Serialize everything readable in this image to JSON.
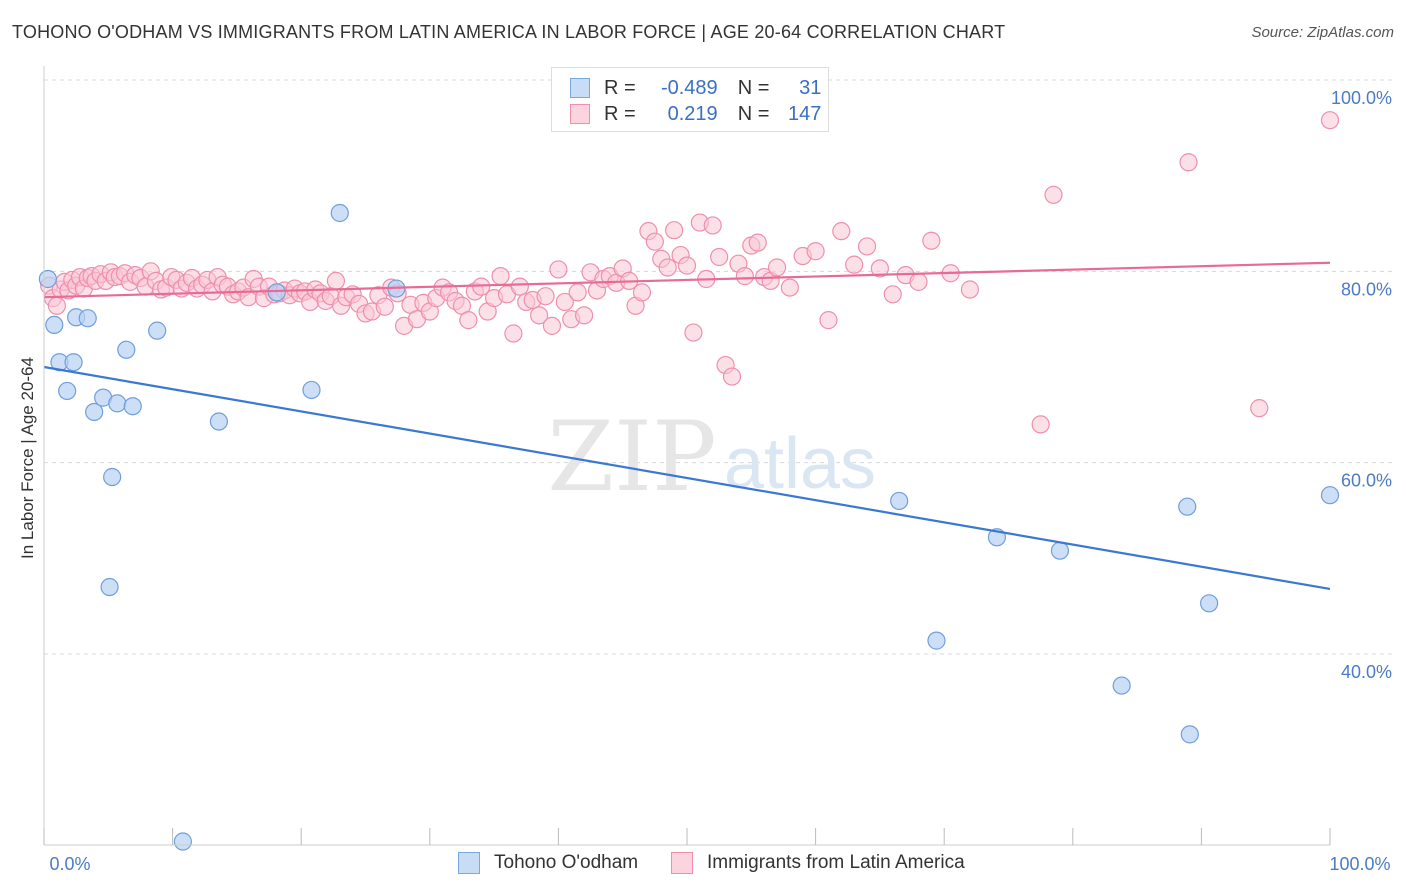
{
  "title": "TOHONO O'ODHAM VS IMMIGRANTS FROM LATIN AMERICA IN LABOR FORCE | AGE 20-64 CORRELATION CHART",
  "source": "Source: ZipAtlas.com",
  "watermark": {
    "zip": "ZIP",
    "atlas": "atlas"
  },
  "legend": {
    "rows": [
      {
        "r_label": "R =",
        "r_value": "-0.489",
        "n_label": "N =",
        "n_value": "31",
        "color": "#aac8f0",
        "border": "#7aa8e0"
      },
      {
        "r_label": "R =",
        "r_value": "0.219",
        "n_label": "N =",
        "n_value": "147",
        "color": "#f8c0d0",
        "border": "#ee90ac"
      }
    ]
  },
  "bottom_legend": [
    {
      "label": "Tohono O'odham",
      "color": "#c8dcf6",
      "border": "#7aa8e0"
    },
    {
      "label": "Immigrants from Latin America",
      "color": "#fbd4df",
      "border": "#ee90ac"
    }
  ],
  "chart_data": {
    "type": "scatter",
    "title": "TOHONO O'ODHAM VS IMMIGRANTS FROM LATIN AMERICA IN LABOR FORCE | AGE 20-64 CORRELATION CHART",
    "xlabel": "",
    "ylabel": "In Labor Force | Age 20-64",
    "xlim": [
      0,
      100
    ],
    "ylim": [
      20,
      102
    ],
    "x_tick_labels": [
      {
        "value": 0,
        "label": "0.0%"
      },
      {
        "value": 100,
        "label": "100.0%"
      }
    ],
    "y_tick_labels": [
      {
        "value": 100,
        "label": "100.0%"
      },
      {
        "value": 80,
        "label": "80.0%"
      },
      {
        "value": 60,
        "label": "60.0%"
      },
      {
        "value": 40,
        "label": "40.0%"
      }
    ],
    "grid": true,
    "colors": {
      "blue": "#3a78d4",
      "pink": "#e86a96",
      "blue_fill": "#b8d2f2",
      "pink_fill": "#f9c6d5"
    },
    "series": [
      {
        "name": "Tohono O'odham",
        "trend": {
          "x": [
            0,
            100
          ],
          "y": [
            70.0,
            46.8
          ]
        },
        "points": [
          [
            0.3,
            79.2
          ],
          [
            0.8,
            74.4
          ],
          [
            1.2,
            70.5
          ],
          [
            1.8,
            67.5
          ],
          [
            2.3,
            70.5
          ],
          [
            2.5,
            75.2
          ],
          [
            3.4,
            75.1
          ],
          [
            3.9,
            65.3
          ],
          [
            4.6,
            66.8
          ],
          [
            5.3,
            58.5
          ],
          [
            5.7,
            66.2
          ],
          [
            6.4,
            71.8
          ],
          [
            6.9,
            65.9
          ],
          [
            5.1,
            47.0
          ],
          [
            8.8,
            73.8
          ],
          [
            10.8,
            20.4
          ],
          [
            13.6,
            64.3
          ],
          [
            18.1,
            77.8
          ],
          [
            20.8,
            67.6
          ],
          [
            23.0,
            86.1
          ],
          [
            27.4,
            78.2
          ],
          [
            44.0,
            100.2
          ],
          [
            66.5,
            56.0
          ],
          [
            69.4,
            41.4
          ],
          [
            74.1,
            52.2
          ],
          [
            79.0,
            50.8
          ],
          [
            83.8,
            36.7
          ],
          [
            88.9,
            55.4
          ],
          [
            89.1,
            31.6
          ],
          [
            90.6,
            45.3
          ],
          [
            100,
            56.6
          ]
        ]
      },
      {
        "name": "Immigrants from Latin America",
        "trend": {
          "x": [
            0,
            100
          ],
          "y": [
            77.3,
            80.9
          ]
        },
        "points": [
          [
            0.4,
            78.5
          ],
          [
            0.7,
            77.2
          ],
          [
            1.0,
            76.4
          ],
          [
            1.3,
            78.1
          ],
          [
            1.6,
            78.9
          ],
          [
            1.9,
            78.0
          ],
          [
            2.2,
            79.1
          ],
          [
            2.5,
            78.5
          ],
          [
            2.8,
            79.4
          ],
          [
            3.1,
            78.2
          ],
          [
            3.4,
            79.3
          ],
          [
            3.7,
            79.5
          ],
          [
            4.0,
            79.0
          ],
          [
            4.4,
            79.7
          ],
          [
            4.8,
            79.0
          ],
          [
            5.2,
            79.9
          ],
          [
            5.5,
            79.4
          ],
          [
            5.9,
            79.5
          ],
          [
            6.3,
            79.8
          ],
          [
            6.7,
            78.9
          ],
          [
            7.1,
            79.6
          ],
          [
            7.5,
            79.3
          ],
          [
            7.9,
            78.4
          ],
          [
            8.3,
            80.0
          ],
          [
            8.7,
            79.0
          ],
          [
            9.1,
            78.1
          ],
          [
            9.5,
            78.3
          ],
          [
            9.9,
            79.4
          ],
          [
            10.3,
            79.1
          ],
          [
            10.7,
            78.2
          ],
          [
            11.1,
            78.8
          ],
          [
            11.5,
            79.3
          ],
          [
            11.9,
            78.2
          ],
          [
            12.3,
            78.6
          ],
          [
            12.7,
            79.1
          ],
          [
            13.1,
            77.9
          ],
          [
            13.5,
            79.4
          ],
          [
            13.9,
            78.6
          ],
          [
            14.3,
            78.4
          ],
          [
            14.7,
            77.6
          ],
          [
            15.1,
            77.9
          ],
          [
            15.5,
            78.3
          ],
          [
            15.9,
            77.3
          ],
          [
            16.3,
            79.2
          ],
          [
            16.7,
            78.4
          ],
          [
            17.1,
            77.2
          ],
          [
            17.5,
            78.4
          ],
          [
            17.9,
            77.6
          ],
          [
            18.3,
            77.7
          ],
          [
            18.7,
            78.0
          ],
          [
            19.1,
            77.5
          ],
          [
            19.5,
            78.2
          ],
          [
            19.9,
            77.7
          ],
          [
            20.3,
            77.9
          ],
          [
            20.7,
            76.8
          ],
          [
            21.1,
            78.1
          ],
          [
            21.5,
            77.7
          ],
          [
            21.9,
            76.9
          ],
          [
            22.3,
            77.4
          ],
          [
            22.7,
            79.0
          ],
          [
            23.1,
            76.4
          ],
          [
            23.5,
            77.3
          ],
          [
            24.0,
            77.6
          ],
          [
            24.5,
            76.6
          ],
          [
            25.0,
            75.6
          ],
          [
            25.5,
            75.8
          ],
          [
            26.0,
            77.5
          ],
          [
            26.5,
            76.3
          ],
          [
            27.0,
            78.3
          ],
          [
            27.5,
            77.7
          ],
          [
            28.0,
            74.3
          ],
          [
            28.5,
            76.5
          ],
          [
            29.0,
            75.0
          ],
          [
            29.5,
            76.7
          ],
          [
            30.0,
            75.8
          ],
          [
            30.5,
            77.2
          ],
          [
            31.0,
            78.3
          ],
          [
            31.5,
            77.8
          ],
          [
            32.0,
            76.9
          ],
          [
            32.5,
            76.4
          ],
          [
            33.0,
            74.9
          ],
          [
            33.5,
            77.9
          ],
          [
            34.0,
            78.4
          ],
          [
            34.5,
            75.8
          ],
          [
            35.0,
            77.2
          ],
          [
            35.5,
            79.5
          ],
          [
            36.0,
            77.6
          ],
          [
            36.5,
            73.5
          ],
          [
            37.0,
            78.4
          ],
          [
            37.5,
            76.8
          ],
          [
            38.0,
            77.0
          ],
          [
            38.5,
            75.4
          ],
          [
            39.0,
            77.4
          ],
          [
            39.5,
            74.3
          ],
          [
            40.0,
            80.2
          ],
          [
            40.5,
            76.8
          ],
          [
            41.0,
            75.0
          ],
          [
            41.5,
            77.8
          ],
          [
            42.0,
            75.4
          ],
          [
            42.5,
            79.9
          ],
          [
            43.0,
            78.0
          ],
          [
            43.5,
            79.2
          ],
          [
            44.0,
            79.5
          ],
          [
            44.5,
            78.8
          ],
          [
            45.0,
            80.3
          ],
          [
            45.5,
            79.0
          ],
          [
            46.0,
            76.4
          ],
          [
            46.5,
            77.8
          ],
          [
            47.0,
            84.2
          ],
          [
            47.5,
            83.1
          ],
          [
            48.0,
            81.3
          ],
          [
            48.5,
            80.4
          ],
          [
            49.0,
            84.3
          ],
          [
            49.5,
            81.7
          ],
          [
            50.0,
            80.6
          ],
          [
            50.5,
            73.6
          ],
          [
            51.0,
            85.1
          ],
          [
            51.5,
            79.2
          ],
          [
            52.0,
            84.8
          ],
          [
            52.5,
            81.5
          ],
          [
            53.0,
            70.2
          ],
          [
            53.5,
            69.0
          ],
          [
            54.0,
            80.8
          ],
          [
            54.5,
            79.5
          ],
          [
            55.0,
            82.7
          ],
          [
            55.5,
            83.0
          ],
          [
            56.0,
            79.4
          ],
          [
            56.5,
            79.0
          ],
          [
            57.0,
            80.4
          ],
          [
            58.0,
            78.3
          ],
          [
            59.0,
            81.6
          ],
          [
            60.0,
            82.1
          ],
          [
            61.0,
            74.9
          ],
          [
            62.0,
            84.2
          ],
          [
            63.0,
            80.7
          ],
          [
            64.0,
            82.6
          ],
          [
            65.0,
            80.3
          ],
          [
            66.0,
            77.6
          ],
          [
            67.0,
            79.6
          ],
          [
            68.0,
            78.9
          ],
          [
            69.0,
            83.2
          ],
          [
            70.5,
            79.8
          ],
          [
            72.0,
            78.1
          ],
          [
            78.5,
            88.0
          ],
          [
            77.5,
            64.0
          ],
          [
            89.0,
            91.4
          ],
          [
            94.5,
            65.7
          ],
          [
            100,
            95.8
          ]
        ]
      }
    ]
  }
}
